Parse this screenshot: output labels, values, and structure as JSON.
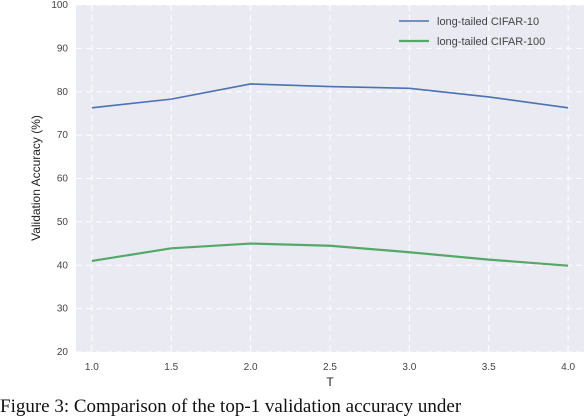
{
  "chart_data": {
    "type": "line",
    "xlabel": "T",
    "ylabel": "Validation Accuracy (%)",
    "xlim": [
      0.9,
      4.1
    ],
    "ylim": [
      20,
      100
    ],
    "xticks": [
      "1.0",
      "1.5",
      "2.0",
      "2.5",
      "3.0",
      "3.5",
      "4.0"
    ],
    "yticks": [
      "20",
      "30",
      "40",
      "50",
      "60",
      "70",
      "80",
      "90",
      "100"
    ],
    "grid": true,
    "legend_position": "top-right",
    "x": [
      1.0,
      1.5,
      2.0,
      2.5,
      3.0,
      3.5,
      4.0
    ],
    "series": [
      {
        "name": "long-tailed CIFAR-10",
        "color": "#4c72b0",
        "values": [
          76.3,
          78.3,
          81.8,
          81.2,
          80.8,
          78.8,
          76.3
        ]
      },
      {
        "name": "long-tailed CIFAR-100",
        "color": "#55a868",
        "values": [
          41.0,
          43.9,
          45.0,
          44.5,
          43.0,
          41.3,
          39.9
        ]
      }
    ]
  },
  "caption": "Figure 3: Comparison of the top-1 validation accuracy under"
}
